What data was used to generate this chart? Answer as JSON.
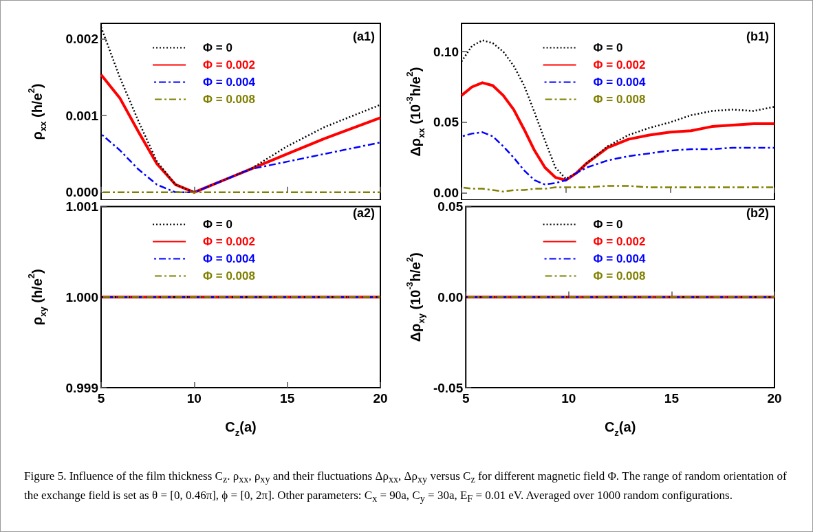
{
  "chart_data": [
    {
      "type": "line",
      "ylabel": "ρ$_{xx}$ (h/e$^{2}$)",
      "annotations": [
        "(a1)"
      ],
      "xlim": [
        5,
        20
      ],
      "xticks": [
        5,
        10,
        15,
        20
      ],
      "ylim": [
        -0.0001,
        0.0022
      ],
      "yticks": [
        {
          "value": 0,
          "label": "0.000"
        },
        0.001,
        0.002
      ],
      "tick_labels": "y",
      "legend": "top",
      "x": [
        5,
        6,
        7,
        8,
        9,
        10,
        11,
        12,
        13,
        15,
        17,
        20
      ],
      "series": [
        {
          "name": "Φ = 0",
          "color": "#000000",
          "line_style": "dotted",
          "values": [
            0.00215,
            0.0015,
            0.00093,
            0.0004,
            0.0001,
            0,
            0.0001,
            0.0002,
            0.0003,
            0.0006,
            0.00085,
            0.00114
          ]
        },
        {
          "name": "Φ = 0.002",
          "color": "#ff0000",
          "line_style": "solid",
          "values": [
            0.00153,
            0.00123,
            0.00079,
            0.00037,
            0.0001,
            0,
            0.0001,
            0.0002,
            0.0003,
            0.0005,
            0.0007,
            0.00097
          ]
        },
        {
          "name": "Φ = 0.004",
          "color": "#0000ff",
          "line_style": "dashed",
          "values": [
            0.00076,
            0.00055,
            0.0003,
            0.0001,
            0,
            0,
            0.0001,
            0.0002,
            0.0003,
            0.0004,
            0.0005,
            0.00065
          ]
        },
        {
          "name": "Φ = 0.008",
          "color": "#808000",
          "line_style": "dashed",
          "values": [
            0,
            0,
            0,
            0,
            0,
            0,
            0,
            0,
            0,
            0,
            0,
            0
          ]
        }
      ]
    },
    {
      "type": "line",
      "ylabel": "Δρ$_{xx}$ (10$^{-3}$h/e$^{2}$)",
      "annotations": [
        "(b1)"
      ],
      "xlim": [
        5,
        20
      ],
      "xticks": [
        5,
        10,
        15,
        20
      ],
      "ylim": [
        -0.005,
        0.12
      ],
      "yticks": [
        {
          "value": 0,
          "label": "0.00"
        },
        0.05,
        {
          "value": 0.1,
          "label": "0.10"
        }
      ],
      "tick_labels": "y",
      "legend": "top",
      "x": [
        5,
        5.5,
        6,
        6.5,
        7,
        7.5,
        8,
        8.5,
        9,
        9.5,
        10,
        10.5,
        11,
        12,
        13,
        14,
        15,
        16,
        17,
        18,
        19,
        20
      ],
      "series": [
        {
          "name": "Φ = 0",
          "color": "#000000",
          "line_style": "dotted",
          "values": [
            0.093,
            0.104,
            0.108,
            0.106,
            0.1,
            0.09,
            0.076,
            0.057,
            0.037,
            0.018,
            0.01,
            0.014,
            0.021,
            0.033,
            0.041,
            0.046,
            0.05,
            0.055,
            0.058,
            0.059,
            0.058,
            0.061
          ]
        },
        {
          "name": "Φ = 0.002",
          "color": "#ff0000",
          "line_style": "solid",
          "values": [
            0.069,
            0.075,
            0.078,
            0.076,
            0.069,
            0.059,
            0.045,
            0.03,
            0.018,
            0.011,
            0.009,
            0.014,
            0.021,
            0.032,
            0.038,
            0.041,
            0.043,
            0.044,
            0.047,
            0.048,
            0.049,
            0.049
          ]
        },
        {
          "name": "Φ = 0.004",
          "color": "#0000ff",
          "line_style": "dashed",
          "values": [
            0.04,
            0.042,
            0.043,
            0.04,
            0.033,
            0.025,
            0.016,
            0.009,
            0.006,
            0.007,
            0.009,
            0.014,
            0.018,
            0.023,
            0.026,
            0.028,
            0.03,
            0.031,
            0.031,
            0.032,
            0.032,
            0.032
          ]
        },
        {
          "name": "Φ = 0.008",
          "color": "#808000",
          "line_style": "dashed",
          "values": [
            0.004,
            0.003,
            0.003,
            0.002,
            0.001,
            0.002,
            0.002,
            0.003,
            0.003,
            0.004,
            0.004,
            0.004,
            0.004,
            0.005,
            0.005,
            0.004,
            0.004,
            0.004,
            0.004,
            0.004,
            0.004,
            0.004
          ]
        }
      ]
    },
    {
      "type": "line",
      "xlabel": "C$_{z}$(a)",
      "ylabel": "ρ$_{xy}$ (h/e$^{2}$)",
      "annotations": [
        "(a2)"
      ],
      "xlim": [
        5,
        20
      ],
      "xticks": [
        5,
        10,
        15,
        20
      ],
      "ylim": [
        0.999,
        1.001
      ],
      "yticks": [
        0.999,
        {
          "value": 1,
          "label": "1.000"
        },
        1.001
      ],
      "legend": "top",
      "x": [
        5,
        10,
        15,
        20
      ],
      "series": [
        {
          "name": "Φ = 0",
          "color": "#000000",
          "line_style": "dotted",
          "values": [
            1,
            1,
            1,
            1
          ]
        },
        {
          "name": "Φ = 0.002",
          "color": "#ff0000",
          "line_style": "solid",
          "values": [
            1,
            1,
            1,
            1
          ]
        },
        {
          "name": "Φ = 0.004",
          "color": "#0000ff",
          "line_style": "dashed",
          "values": [
            1,
            1,
            1,
            1
          ]
        },
        {
          "name": "Φ = 0.008",
          "color": "#808000",
          "line_style": "dashed",
          "values": [
            1,
            1,
            1,
            1
          ]
        }
      ]
    },
    {
      "type": "line",
      "xlabel": "C$_{z}$(a)",
      "ylabel": "Δρ$_{xy}$ (10$^{-3}$h/e$^{2}$)",
      "annotations": [
        "(b2)",
        "Figure 5. Influence of the film thickness C$_{z}$. ρ$_{xx}$, ρ$_{xy}$ and their fluctuations Δρ$_{xx}$, Δρ$_{xy}$ versus C$_{z}$ for different magnetic field Φ. The range of random orientation of the exchange field is set as θ = [0, 0.46π], ϕ = [0, 2π]. Other parameters: C$_{x}$ = 90a, C$_{y}$ = 30a, E$_{F}$ = 0.01 eV. Averaged over 1000 random configurations."
      ],
      "xlim": [
        5,
        20
      ],
      "xticks": [
        5,
        10,
        15,
        20
      ],
      "ylim": [
        -0.05,
        0.05
      ],
      "yticks": [
        -0.05,
        {
          "value": 0,
          "label": "0.00"
        },
        0.05
      ],
      "legend": "top",
      "x": [
        5,
        10,
        15,
        20
      ],
      "series": [
        {
          "name": "Φ = 0",
          "color": "#000000",
          "line_style": "dotted",
          "values": [
            0,
            0,
            0,
            0
          ]
        },
        {
          "name": "Φ = 0.002",
          "color": "#ff0000",
          "line_style": "solid",
          "values": [
            0,
            0,
            0,
            0
          ]
        },
        {
          "name": "Φ = 0.004",
          "color": "#0000ff",
          "line_style": "dashed",
          "values": [
            0,
            0,
            0,
            0
          ]
        },
        {
          "name": "Φ = 0.008",
          "color": "#808000",
          "line_style": "dashed",
          "values": [
            0,
            0,
            0,
            0
          ]
        }
      ]
    }
  ]
}
